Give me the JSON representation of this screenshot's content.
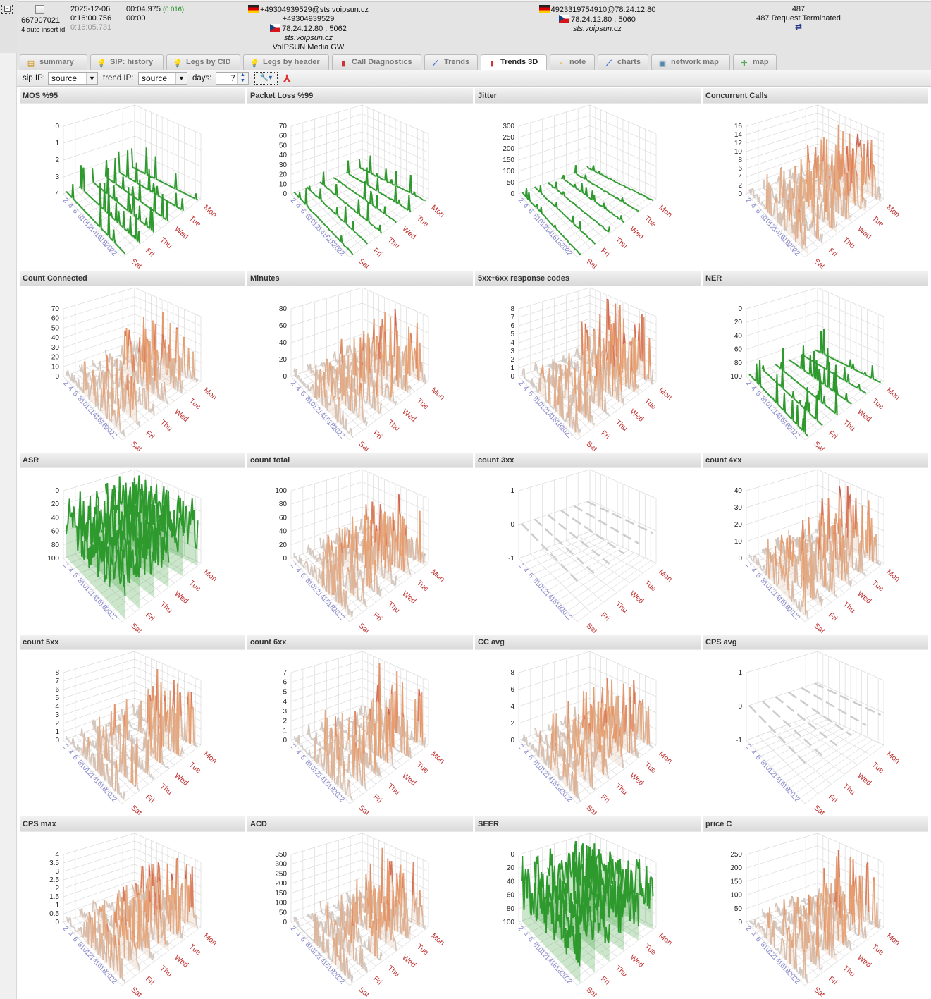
{
  "record": {
    "id": "667907021",
    "id_note": "4 auto insert id",
    "date": "2025-12-06",
    "start_time": "0:16:00.756",
    "end_time": "0:16:05.731",
    "duration": "00:04.975",
    "duration_extra": "(0.016)",
    "connect_duration": "00:00",
    "caller": {
      "uri": "+49304939529@sts.voipsun.cz",
      "number": "+49304939529",
      "ip_port": "78.24.12.80 : 5062",
      "domain": "sts.voipsun.cz",
      "agent": "VoIPSUN Media GW"
    },
    "callee": {
      "uri": "4923319754910@78.24.12.80",
      "ip_port": "78.24.12.80 : 5060",
      "domain": "sts.voipsun.cz"
    },
    "status": {
      "code": "487",
      "text": "487 Request Terminated"
    },
    "colors": {
      "duration_extra": "#1a8a1a"
    }
  },
  "tabs": [
    {
      "label": "summary",
      "icon": "summary-icon"
    },
    {
      "label": "SIP: history",
      "icon": "bulb-icon"
    },
    {
      "label": "Legs by CID",
      "icon": "bulb-icon"
    },
    {
      "label": "Legs by header",
      "icon": "bulb-icon"
    },
    {
      "label": "Call Diagnostics",
      "icon": "bar-chart-icon"
    },
    {
      "label": "Trends",
      "icon": "line-chart-icon"
    },
    {
      "label": "Trends 3D",
      "icon": "bar-chart-icon",
      "active": true
    },
    {
      "label": "note",
      "icon": "note-icon"
    },
    {
      "label": "charts",
      "icon": "line-chart-icon"
    },
    {
      "label": "network map",
      "icon": "network-icon"
    },
    {
      "label": "map",
      "icon": "map-icon"
    }
  ],
  "toolbar": {
    "sip_ip_label": "sip IP:",
    "sip_ip_value": "source",
    "trend_ip_label": "trend IP:",
    "trend_ip_value": "source",
    "days_label": "days:",
    "days_value": "7"
  },
  "chart_data": [
    {
      "type": "surface3d",
      "title": "MOS %95",
      "yticks": [
        0,
        1,
        2,
        3,
        4
      ],
      "inverted": true,
      "scheme": "green",
      "peak": 0.45,
      "fill": 0.35
    },
    {
      "type": "surface3d",
      "title": "Packet Loss %99",
      "yticks": [
        0,
        10,
        20,
        30,
        40,
        50,
        60,
        70
      ],
      "scheme": "green",
      "peak": 0.3,
      "fill": 0.5
    },
    {
      "type": "surface3d",
      "title": "Jitter",
      "yticks": [
        0,
        50,
        100,
        150,
        200,
        250,
        300
      ],
      "scheme": "green",
      "peak": 0.15,
      "fill": 0.7
    },
    {
      "type": "surface3d",
      "title": "Concurrent Calls",
      "yticks": [
        0,
        2,
        4,
        6,
        8,
        10,
        12,
        14,
        16
      ],
      "scheme": "heat",
      "peak": 0.95,
      "fill": 0.85
    },
    {
      "type": "surface3d",
      "title": "Count Connected",
      "yticks": [
        0,
        10,
        20,
        30,
        40,
        50,
        60,
        70
      ],
      "scheme": "heat",
      "peak": 0.95,
      "fill": 0.85
    },
    {
      "type": "surface3d",
      "title": "Minutes",
      "yticks": [
        0,
        20,
        40,
        60,
        80
      ],
      "scheme": "heat",
      "peak": 0.95,
      "fill": 0.85
    },
    {
      "type": "surface3d",
      "title": "5xx+6xx response codes",
      "yticks": [
        0,
        1,
        2,
        3,
        4,
        5,
        6,
        7,
        8
      ],
      "scheme": "heat",
      "peak": 1.0,
      "fill": 0.7
    },
    {
      "type": "surface3d",
      "title": "NER",
      "yticks": [
        0,
        20,
        40,
        60,
        80,
        100
      ],
      "inverted": true,
      "scheme": "green",
      "peak": 0.45,
      "fill": 0.5
    },
    {
      "type": "surface3d",
      "title": "ASR",
      "yticks": [
        0,
        20,
        40,
        60,
        80,
        100
      ],
      "inverted": true,
      "scheme": "green",
      "peak": 1.0,
      "fill": 0.95
    },
    {
      "type": "surface3d",
      "title": "count total",
      "yticks": [
        0,
        20,
        40,
        60,
        80,
        100
      ],
      "scheme": "heat",
      "peak": 0.95,
      "fill": 0.85
    },
    {
      "type": "surface3d",
      "title": "count 3xx",
      "yticks": [
        -1,
        0,
        1
      ],
      "scheme": "flat",
      "peak": 0.0,
      "fill": 0.6
    },
    {
      "type": "surface3d",
      "title": "count 4xx",
      "yticks": [
        0,
        10,
        20,
        30,
        40
      ],
      "scheme": "heat",
      "peak": 1.0,
      "fill": 0.85
    },
    {
      "type": "surface3d",
      "title": "count 5xx",
      "yticks": [
        0,
        1,
        2,
        3,
        4,
        5,
        6,
        7,
        8
      ],
      "scheme": "heat",
      "peak": 0.95,
      "fill": 0.6
    },
    {
      "type": "surface3d",
      "title": "count 6xx",
      "yticks": [
        0,
        1,
        2,
        3,
        4,
        5,
        6,
        7
      ],
      "scheme": "heat",
      "peak": 1.0,
      "fill": 0.6
    },
    {
      "type": "surface3d",
      "title": "CC avg",
      "yticks": [
        0,
        2,
        4,
        6,
        8
      ],
      "scheme": "heat",
      "peak": 0.95,
      "fill": 0.85
    },
    {
      "type": "surface3d",
      "title": "CPS avg",
      "yticks": [
        -1,
        0,
        1
      ],
      "scheme": "flat",
      "peak": 0.0,
      "fill": 0.6
    },
    {
      "type": "surface3d",
      "title": "CPS max",
      "yticks": [
        0,
        0.5,
        1,
        1.5,
        2,
        2.5,
        3,
        3.5,
        4
      ],
      "scheme": "heat",
      "peak": 1.0,
      "fill": 0.95
    },
    {
      "type": "surface3d",
      "title": "ACD",
      "yticks": [
        0,
        50,
        100,
        150,
        200,
        250,
        300,
        350
      ],
      "scheme": "heat",
      "peak": 0.95,
      "fill": 0.75
    },
    {
      "type": "surface3d",
      "title": "SEER",
      "yticks": [
        0,
        20,
        40,
        60,
        80,
        100
      ],
      "inverted": true,
      "scheme": "green",
      "peak": 1.0,
      "fill": 0.95
    },
    {
      "type": "surface3d",
      "title": "price C",
      "yticks": [
        0,
        50,
        100,
        150,
        200,
        250
      ],
      "scheme": "heat",
      "peak": 0.95,
      "fill": 0.8
    }
  ],
  "axes": {
    "days": [
      "Mon",
      "Tue",
      "Wed",
      "Thu",
      "Fri",
      "Sat"
    ],
    "hours": [
      "2",
      "4",
      "6",
      "8",
      "10",
      "12",
      "14",
      "16",
      "18",
      "20",
      "22"
    ],
    "colors": {
      "day_label": "#c03030",
      "hour_label": "#8888cc",
      "green": "#2e9a2e",
      "low": "#d0d0d0",
      "mid": "#e8a070",
      "high": "#c04040"
    }
  }
}
